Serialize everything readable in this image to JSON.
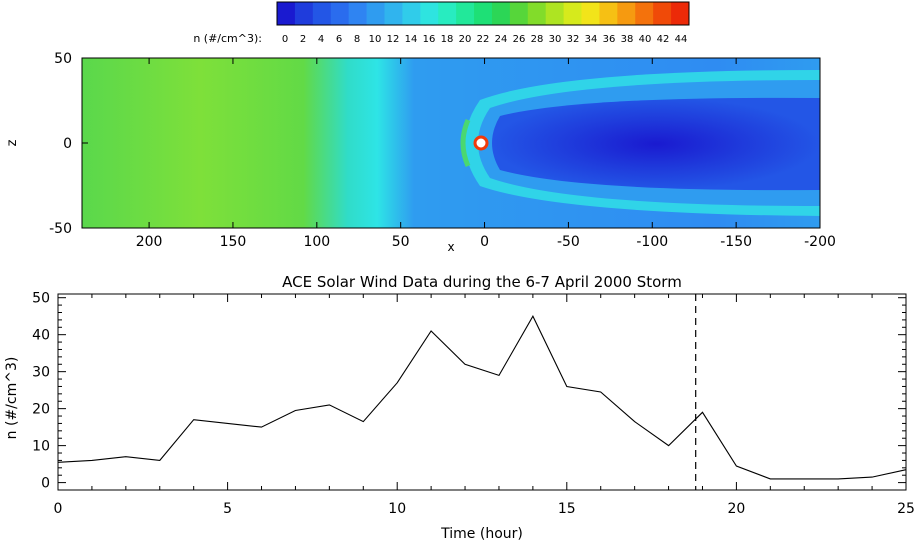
{
  "colorbar": {
    "label": "n (#/cm^3):",
    "ticks": [
      "0",
      "2",
      "4",
      "6",
      "8",
      "10",
      "12",
      "14",
      "16",
      "18",
      "20",
      "22",
      "24",
      "26",
      "28",
      "30",
      "32",
      "34",
      "36",
      "38",
      "40",
      "42",
      "44"
    ],
    "colors": [
      "#1a1ad0",
      "#1f3cdc",
      "#2356e6",
      "#2a6cee",
      "#2f84f2",
      "#2f9cf0",
      "#30b4ee",
      "#30ccea",
      "#2ee4e0",
      "#28ecc0",
      "#22e89a",
      "#1ee076",
      "#2cd656",
      "#56d63a",
      "#82dc2a",
      "#aee422",
      "#d6ea1c",
      "#f2e41a",
      "#f6c014",
      "#f69a10",
      "#f4720c",
      "#f04a08",
      "#ec2a08"
    ]
  },
  "chart_data": [
    {
      "type": "heatmap",
      "title": "",
      "xlabel": "x",
      "ylabel": "z",
      "xlim": [
        240,
        -200
      ],
      "ylim": [
        -50,
        50
      ],
      "xticks": [
        200,
        150,
        100,
        50,
        0,
        -50,
        -100,
        -150,
        -200
      ],
      "yticks": [
        50,
        0,
        -50
      ],
      "colorbar_range": [
        0,
        44
      ],
      "colorbar_unit": "n (#/cm^3)"
    },
    {
      "type": "line",
      "title": "ACE Solar Wind Data during the 6-7 April 2000 Storm",
      "xlabel": "Time (hour)",
      "ylabel": "n (#/cm^3)",
      "xlim": [
        0,
        25
      ],
      "ylim": [
        -2,
        51
      ],
      "xticks": [
        0,
        5,
        10,
        15,
        20,
        25
      ],
      "yticks": [
        0,
        10,
        20,
        30,
        40,
        50
      ],
      "marker_line_x": 18.8,
      "series": [
        {
          "x": [
            0,
            1,
            2,
            3,
            4,
            5,
            6,
            7,
            8,
            9,
            10,
            11,
            12,
            13,
            14,
            15,
            16,
            17,
            18,
            19,
            20,
            21,
            22,
            23,
            24,
            25
          ],
          "values": [
            5.5,
            6,
            7,
            6,
            17,
            16,
            15,
            19.5,
            21,
            16.5,
            27,
            41,
            32,
            29,
            45,
            26,
            24.5,
            16.5,
            10,
            19,
            4.5,
            1,
            1,
            1,
            1.5,
            3.5
          ]
        }
      ]
    }
  ]
}
